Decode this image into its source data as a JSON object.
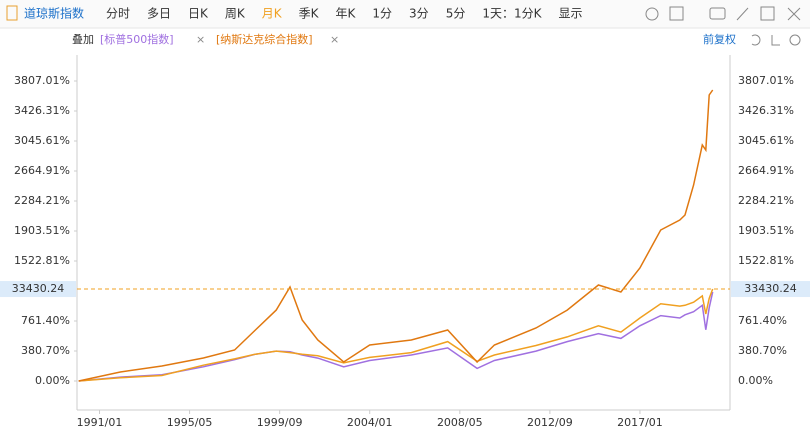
{
  "toolbar": {
    "tabs": [
      "分时",
      "多日",
      "日K",
      "周K",
      "月K",
      "季K",
      "年K",
      "1分",
      "3分",
      "5分",
      "1天：1分K",
      "显示"
    ],
    "active": 4
  },
  "overlay": {
    "label": "叠加",
    "remove": "×",
    "adjust": "前复权"
  },
  "chart_data": {
    "type": "line",
    "x": [
      "1990/01",
      "1992/01",
      "1994/01",
      "1996/01",
      "1997/07",
      "1998/07",
      "1999/07",
      "2000/03",
      "2000/10",
      "2001/07",
      "2002/10",
      "2004/01",
      "2006/01",
      "2007/10",
      "2009/03",
      "2010/01",
      "2012/01",
      "2013/07",
      "2015/01",
      "2016/02",
      "2017/01",
      "2018/01",
      "2018/12",
      "2019/03",
      "2019/08",
      "2020/01",
      "2020/03",
      "2020/05",
      "2020/07"
    ],
    "series": [
      {
        "name": "道琼斯指数",
        "color": "#f0a020",
        "values": [
          0,
          40,
          70,
          200,
          280,
          340,
          380,
          360,
          340,
          320,
          230,
          300,
          360,
          500,
          250,
          330,
          450,
          560,
          700,
          620,
          800,
          980,
          950,
          960,
          1000,
          1080,
          850,
          1050,
          1167
        ]
      },
      {
        "name": "[标普500指数]",
        "color": "#a070e0",
        "values": [
          0,
          50,
          80,
          180,
          270,
          340,
          380,
          370,
          330,
          290,
          180,
          260,
          330,
          420,
          160,
          260,
          380,
          500,
          600,
          540,
          700,
          830,
          800,
          840,
          880,
          960,
          650,
          930,
          1130
        ]
      },
      {
        "name": "[纳斯达克综合指数]",
        "color": "#e07810",
        "values": [
          0,
          114,
          190,
          292,
          393,
          647,
          900,
          1193,
          774,
          520,
          241,
          457,
          520,
          647,
          241,
          457,
          672,
          900,
          1218,
          1129,
          1434,
          1916,
          2043,
          2106,
          2487,
          2995,
          2931,
          3629,
          3693
        ]
      }
    ],
    "xlim": [
      "1989/12",
      "2021/05"
    ],
    "xticks": [
      "1991/01",
      "1995/05",
      "1999/09",
      "2004/01",
      "2008/05",
      "2012/09",
      "2017/01"
    ],
    "ylim": [
      -368,
      4010
    ],
    "yticks": [
      {
        "value": 0,
        "label": "0.00%"
      },
      {
        "value": 380.7,
        "label": "380.70%"
      },
      {
        "value": 761.4,
        "label": "761.40%"
      },
      {
        "value": 1522.81,
        "label": "1522.81%"
      },
      {
        "value": 1903.51,
        "label": "1903.51%"
      },
      {
        "value": 2284.21,
        "label": "2284.21%"
      },
      {
        "value": 2664.91,
        "label": "2664.91%"
      },
      {
        "value": 3045.61,
        "label": "3045.61%"
      },
      {
        "value": 3426.31,
        "label": "3426.31%"
      },
      {
        "value": 3807.01,
        "label": "3807.01%"
      }
    ],
    "crosshair": {
      "label": "33430.24"
    }
  }
}
